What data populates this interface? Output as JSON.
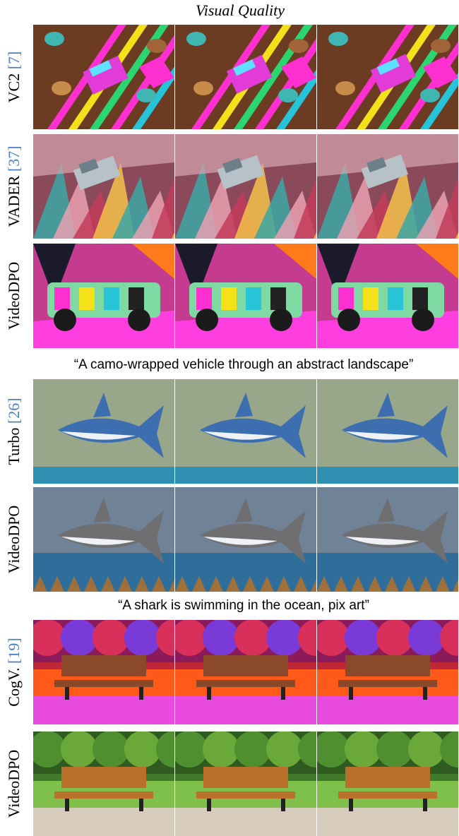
{
  "title": "Visual Quality",
  "groups": [
    {
      "rows": [
        {
          "label": "VC2",
          "ref": "[7]"
        },
        {
          "label": "VADER",
          "ref": "[37]"
        },
        {
          "label": "VideoDPO"
        }
      ],
      "caption": "“A camo-wrapped vehicle through an abstract landscape”"
    },
    {
      "rows": [
        {
          "label": "Turbo",
          "ref": "[26]"
        },
        {
          "label": "VideoDPO"
        }
      ],
      "caption": "“A shark is swimming in the ocean, pix art”"
    },
    {
      "rows": [
        {
          "label": "CogV.",
          "ref": "[19]"
        },
        {
          "label": "VideoDPO"
        }
      ]
    }
  ]
}
